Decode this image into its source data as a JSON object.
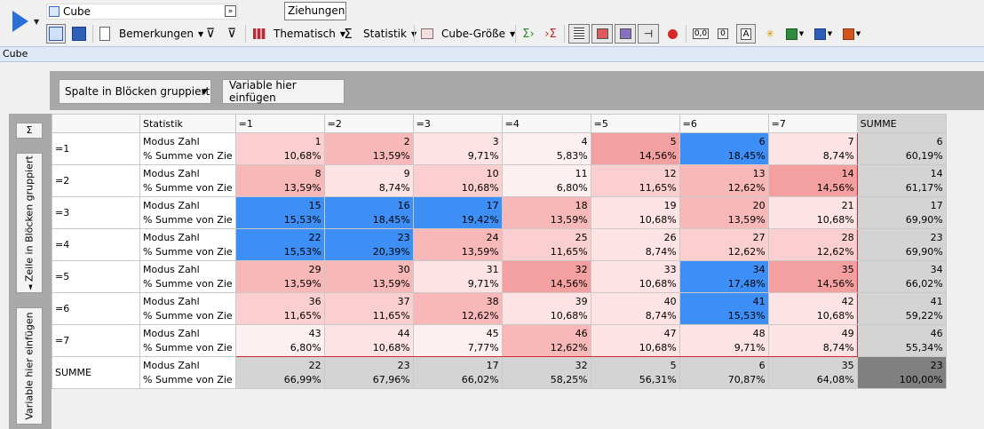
{
  "toolbar": {
    "cube_field_value": "Cube",
    "ziehungen_value": "Ziehungen",
    "bemerkungen_label": "Bemerkungen",
    "thematisch_label": "Thematisch",
    "statistik_label": "Statistik",
    "cube_groesse_label": "Cube-Größe",
    "icon_0_label": "0,0",
    "icon_00_label": "0",
    "icon_a_label": "A"
  },
  "breadcrumb": "Cube",
  "pivot": {
    "column_group_button": "Spalte in Blöcken gruppiert",
    "insert_variable_button": "Variable hier einfügen",
    "sigma_button": "Σ",
    "row_group_button": "Zeile in Blöcken gruppiert",
    "row_insert_variable_button": "Variable hier einfügen",
    "header_statistik": "Statistik",
    "column_headers": [
      "=1",
      "=2",
      "=3",
      "=4",
      "=5",
      "=6",
      "=7",
      "SUMME"
    ],
    "stat_labels": [
      "Modus Zahl",
      "% Summe von Zie"
    ],
    "rows": [
      {
        "label": "=1",
        "modes": [
          "1",
          "2",
          "3",
          "4",
          "5",
          "6",
          "7"
        ],
        "pcts": [
          "10,68%",
          "13,59%",
          "9,71%",
          "5,83%",
          "14,56%",
          "18,45%",
          "8,74%"
        ],
        "fill": [
          2,
          3,
          1,
          0,
          4,
          9,
          1
        ],
        "sum_mode": "6",
        "sum_pct": "60,19%"
      },
      {
        "label": "=2",
        "modes": [
          "8",
          "9",
          "10",
          "11",
          "12",
          "13",
          "14"
        ],
        "pcts": [
          "13,59%",
          "8,74%",
          "10,68%",
          "6,80%",
          "11,65%",
          "12,62%",
          "14,56%"
        ],
        "fill": [
          3,
          1,
          2,
          0,
          2,
          3,
          4
        ],
        "sum_mode": "14",
        "sum_pct": "61,17%"
      },
      {
        "label": "=3",
        "modes": [
          "15",
          "16",
          "17",
          "18",
          "19",
          "20",
          "21"
        ],
        "pcts": [
          "15,53%",
          "18,45%",
          "19,42%",
          "13,59%",
          "10,68%",
          "13,59%",
          "10,68%"
        ],
        "fill": [
          9,
          9,
          9,
          3,
          1,
          3,
          1
        ],
        "sum_mode": "17",
        "sum_pct": "69,90%"
      },
      {
        "label": "=4",
        "modes": [
          "22",
          "23",
          "24",
          "25",
          "26",
          "27",
          "28"
        ],
        "pcts": [
          "15,53%",
          "20,39%",
          "13,59%",
          "11,65%",
          "8,74%",
          "12,62%",
          "12,62%"
        ],
        "fill": [
          9,
          9,
          3,
          2,
          1,
          2,
          2
        ],
        "sum_mode": "23",
        "sum_pct": "69,90%"
      },
      {
        "label": "=5",
        "modes": [
          "29",
          "30",
          "31",
          "32",
          "33",
          "34",
          "35"
        ],
        "pcts": [
          "13,59%",
          "13,59%",
          "9,71%",
          "14,56%",
          "10,68%",
          "17,48%",
          "14,56%"
        ],
        "fill": [
          3,
          3,
          1,
          4,
          1,
          9,
          4
        ],
        "sum_mode": "34",
        "sum_pct": "66,02%"
      },
      {
        "label": "=6",
        "modes": [
          "36",
          "37",
          "38",
          "39",
          "40",
          "41",
          "42"
        ],
        "pcts": [
          "11,65%",
          "11,65%",
          "12,62%",
          "10,68%",
          "8,74%",
          "15,53%",
          "10,68%"
        ],
        "fill": [
          2,
          2,
          3,
          1,
          1,
          9,
          1
        ],
        "sum_mode": "41",
        "sum_pct": "59,22%"
      },
      {
        "label": "=7",
        "modes": [
          "43",
          "44",
          "45",
          "46",
          "47",
          "48",
          "49"
        ],
        "pcts": [
          "6,80%",
          "10,68%",
          "7,77%",
          "12,62%",
          "10,68%",
          "9,71%",
          "8,74%"
        ],
        "fill": [
          0,
          1,
          0,
          3,
          1,
          1,
          1
        ],
        "sum_mode": "46",
        "sum_pct": "55,34%"
      }
    ],
    "summe_row": {
      "label": "SUMME",
      "modes": [
        "22",
        "23",
        "17",
        "32",
        "5",
        "6",
        "35"
      ],
      "pcts": [
        "66,99%",
        "67,96%",
        "66,02%",
        "58,25%",
        "56,31%",
        "70,87%",
        "64,08%"
      ],
      "total_mode": "23",
      "total_pct": "100,00%"
    }
  },
  "colors": {
    "blue": "#3d8ff5",
    "red_levels": [
      "#fdf0f0",
      "#fde3e3",
      "#fbcfcf",
      "#f8b8b8",
      "#f4a0a0"
    ],
    "sum_cell": "#d4d4d4",
    "total_cell": "#808080",
    "accent_red": "#d6262e"
  }
}
